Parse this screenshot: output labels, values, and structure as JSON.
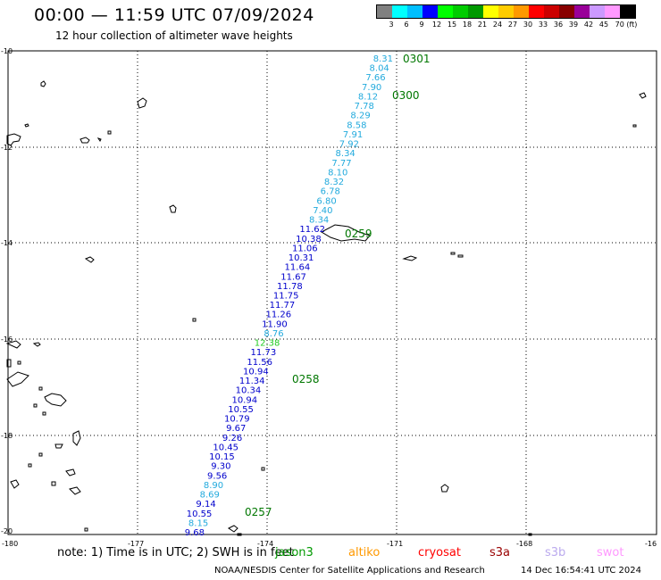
{
  "header": {
    "title": "00:00 — 11:59 UTC 07/09/2024",
    "subtitle": "12 hour collection of altimeter wave heights"
  },
  "legend": {
    "labels": [
      "3",
      "6",
      "9",
      "12",
      "15",
      "18",
      "21",
      "24",
      "27",
      "30",
      "33",
      "36",
      "39",
      "42",
      "45",
      "70 (ft)"
    ],
    "colors": [
      "#808080",
      "#00ffff",
      "#00bfff",
      "#0000ff",
      "#00ff00",
      "#00cc00",
      "#009900",
      "#ffff00",
      "#ffcc00",
      "#ff9900",
      "#ff0000",
      "#cc0000",
      "#880000",
      "#990099",
      "#cc99ff",
      "#ff99ff",
      "#000000"
    ]
  },
  "axes": {
    "lon_labels": [
      "-180",
      "-177",
      "-174",
      "-171",
      "-168",
      "-16"
    ],
    "lat_labels": [
      "-10",
      "-12",
      "-14",
      "-16",
      "-18",
      "-20"
    ]
  },
  "track": [
    {
      "v": "8.31",
      "c": "#22aadd"
    },
    {
      "v": "8.04",
      "c": "#22aadd"
    },
    {
      "v": "7.66",
      "c": "#22aadd"
    },
    {
      "v": "7.90",
      "c": "#22aadd"
    },
    {
      "v": "8.12",
      "c": "#22aadd"
    },
    {
      "v": "7.78",
      "c": "#22aadd"
    },
    {
      "v": "8.29",
      "c": "#22aadd"
    },
    {
      "v": "8.58",
      "c": "#22aadd"
    },
    {
      "v": "7.91",
      "c": "#22aadd"
    },
    {
      "v": "7.92",
      "c": "#22aadd"
    },
    {
      "v": "8.34",
      "c": "#22aadd"
    },
    {
      "v": "7.77",
      "c": "#22aadd"
    },
    {
      "v": "8.10",
      "c": "#22aadd"
    },
    {
      "v": "8.32",
      "c": "#22aadd"
    },
    {
      "v": "6.78",
      "c": "#22aadd"
    },
    {
      "v": "6.80",
      "c": "#22aadd"
    },
    {
      "v": "7.40",
      "c": "#22aadd"
    },
    {
      "v": "8.34",
      "c": "#22aadd"
    },
    {
      "v": "11.62",
      "c": "#0000cc"
    },
    {
      "v": "10.38",
      "c": "#0000cc"
    },
    {
      "v": "11.06",
      "c": "#0000cc"
    },
    {
      "v": "10.31",
      "c": "#0000cc"
    },
    {
      "v": "11.64",
      "c": "#0000cc"
    },
    {
      "v": "11.67",
      "c": "#0000cc"
    },
    {
      "v": "11.78",
      "c": "#0000cc"
    },
    {
      "v": "11.75",
      "c": "#0000cc"
    },
    {
      "v": "11.77",
      "c": "#0000cc"
    },
    {
      "v": "11.26",
      "c": "#0000cc"
    },
    {
      "v": "11.90",
      "c": "#0000cc"
    },
    {
      "v": "8.76",
      "c": "#22aadd"
    },
    {
      "v": "12.38",
      "c": "#22cc22"
    },
    {
      "v": "11.73",
      "c": "#0000cc"
    },
    {
      "v": "11.56",
      "c": "#0000cc"
    },
    {
      "v": "10.94",
      "c": "#0000cc"
    },
    {
      "v": "11.34",
      "c": "#0000cc"
    },
    {
      "v": "10.34",
      "c": "#0000cc"
    },
    {
      "v": "10.94",
      "c": "#0000cc"
    },
    {
      "v": "10.55",
      "c": "#0000cc"
    },
    {
      "v": "10.79",
      "c": "#0000cc"
    },
    {
      "v": "9.67",
      "c": "#0000cc"
    },
    {
      "v": "9.26",
      "c": "#0000cc"
    },
    {
      "v": "10.45",
      "c": "#0000cc"
    },
    {
      "v": "10.15",
      "c": "#0000cc"
    },
    {
      "v": "9.30",
      "c": "#0000cc"
    },
    {
      "v": "9.56",
      "c": "#0000cc"
    },
    {
      "v": "8.90",
      "c": "#22aadd"
    },
    {
      "v": "8.69",
      "c": "#22aadd"
    },
    {
      "v": "9.14",
      "c": "#0000cc"
    },
    {
      "v": "10.55",
      "c": "#0000cc"
    },
    {
      "v": "8.15",
      "c": "#22aadd"
    },
    {
      "v": "9.68",
      "c": "#0000cc"
    }
  ],
  "time_stamps": [
    "0301",
    "0300",
    "0259",
    "0258",
    "0257"
  ],
  "note": "note: 1) Time is in UTC; 2) SWH is in feet",
  "satellites": [
    {
      "name": "jason3",
      "color": "#009900"
    },
    {
      "name": "altiko",
      "color": "#ff9900"
    },
    {
      "name": "cryosat",
      "color": "#ff0000"
    },
    {
      "name": "s3a",
      "color": "#990000"
    },
    {
      "name": "s3b",
      "color": "#bbaaee"
    },
    {
      "name": "swot",
      "color": "#ff99ff"
    }
  ],
  "footer": {
    "source": "NOAA/NESDIS Center for Satellite Applications and Research",
    "timestamp": "14 Dec 16:54:41 UTC 2024"
  }
}
